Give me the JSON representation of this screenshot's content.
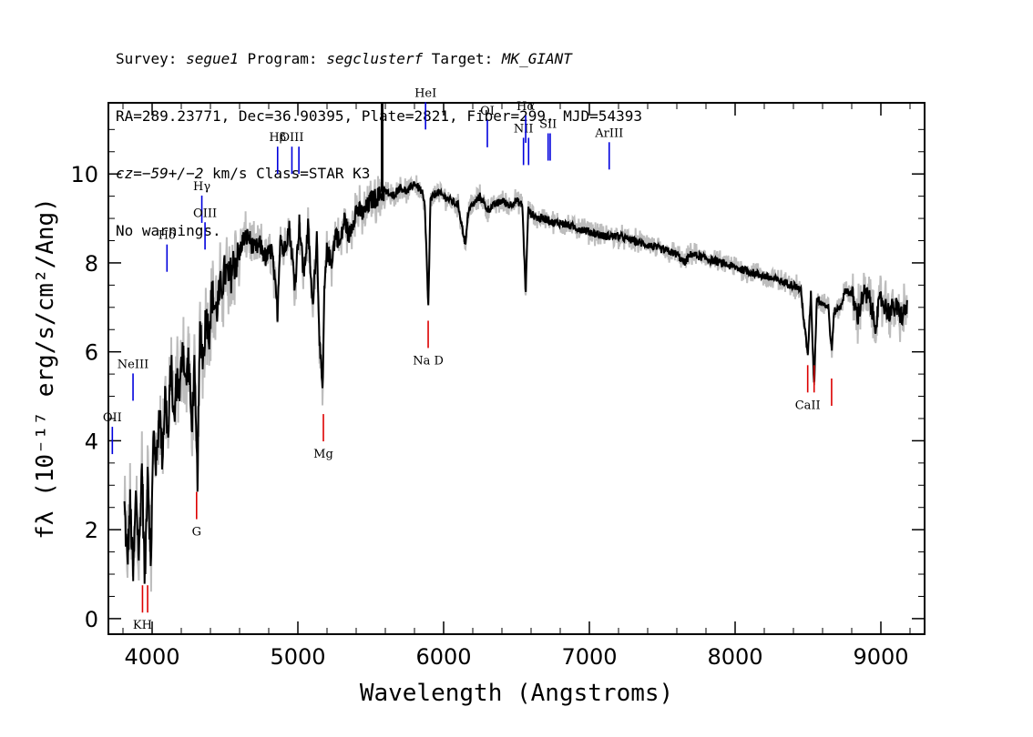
{
  "header": {
    "line1": {
      "survey_label": "Survey: ",
      "survey": "segue1",
      "program_label": " Program: ",
      "program": "segclusterf",
      "target_label": " Target: ",
      "target": "MK_GIANT"
    },
    "line2": "RA=289.23771, Dec=36.90395, Plate=2821, Fiber=299, MJD=54393",
    "line3": {
      "cz_label": "cz",
      "cz_value": "=−59+/−2",
      "rest": " km/s Class=STAR K3"
    },
    "line4": "No warnings."
  },
  "chart_data": {
    "type": "line",
    "xlabel": "Wavelength (Angstroms)",
    "ylabel": "fλ (10⁻¹⁷ erg/s/cm²/Ang)",
    "xlim": [
      3700,
      9300
    ],
    "ylim": [
      -0.35,
      11.6
    ],
    "xticks": [
      4000,
      5000,
      6000,
      7000,
      8000,
      9000
    ],
    "yticks": [
      0,
      2,
      4,
      6,
      8,
      10
    ],
    "series": [
      {
        "color": "#000000",
        "x": [
          3810,
          3830,
          3850,
          3870,
          3890,
          3910,
          3930,
          3950,
          3970,
          3990,
          4010,
          4030,
          4050,
          4070,
          4090,
          4110,
          4130,
          4150,
          4170,
          4190,
          4210,
          4230,
          4250,
          4270,
          4290,
          4310,
          4330,
          4350,
          4370,
          4390,
          4410,
          4440,
          4470,
          4500,
          4530,
          4560,
          4590,
          4620,
          4660,
          4700,
          4740,
          4780,
          4820,
          4860,
          4880,
          4900,
          4940,
          4980,
          5010,
          5040,
          5070,
          5100,
          5130,
          5150,
          5170,
          5180,
          5200,
          5230,
          5260,
          5290,
          5320,
          5350,
          5400,
          5450,
          5500,
          5550,
          5600,
          5650,
          5700,
          5750,
          5800,
          5850,
          5870,
          5890,
          5895,
          5910,
          5950,
          6000,
          6050,
          6100,
          6150,
          6170,
          6200,
          6250,
          6300,
          6350,
          6400,
          6450,
          6500,
          6540,
          6563,
          6580,
          6600,
          6650,
          6700,
          6750,
          6800,
          6900,
          7000,
          7100,
          7200,
          7300,
          7400,
          7500,
          7600,
          7650,
          7700,
          7800,
          7900,
          8000,
          8100,
          8200,
          8300,
          8400,
          8450,
          8498,
          8520,
          8542,
          8560,
          8600,
          8640,
          8662,
          8680,
          8720,
          8760,
          8800,
          8840,
          8880,
          8920,
          8960,
          9000,
          9050,
          9100,
          9150,
          9180
        ],
        "y": [
          2.5,
          1.2,
          2.6,
          0.9,
          2.9,
          1.3,
          3.5,
          0.7,
          3.6,
          1.1,
          4.2,
          3.4,
          4.8,
          3.6,
          5.1,
          4.0,
          5.8,
          4.3,
          5.5,
          5.0,
          6.3,
          5.2,
          5.9,
          4.3,
          5.5,
          3.1,
          6.6,
          5.8,
          6.9,
          6.4,
          7.3,
          6.9,
          7.4,
          7.8,
          7.6,
          8.0,
          8.1,
          8.5,
          8.6,
          8.3,
          8.4,
          8.1,
          8.3,
          6.9,
          8.7,
          8.2,
          8.8,
          7.5,
          8.9,
          7.7,
          8.8,
          7.0,
          8.6,
          6.1,
          5.0,
          7.2,
          8.3,
          8.0,
          8.7,
          8.4,
          9.0,
          8.6,
          9.2,
          9.1,
          9.4,
          9.5,
          9.6,
          9.5,
          9.7,
          9.6,
          9.8,
          9.6,
          9.3,
          7.5,
          7.0,
          9.4,
          9.6,
          9.5,
          9.4,
          9.3,
          8.4,
          9.2,
          9.3,
          9.5,
          9.2,
          9.3,
          9.4,
          9.3,
          9.4,
          9.3,
          7.3,
          9.2,
          9.1,
          9.0,
          9.0,
          8.9,
          8.9,
          8.8,
          8.7,
          8.6,
          8.6,
          8.5,
          8.4,
          8.3,
          8.2,
          8.0,
          8.2,
          8.1,
          8.0,
          7.9,
          7.8,
          7.7,
          7.6,
          7.5,
          7.4,
          5.9,
          7.3,
          5.2,
          7.2,
          7.1,
          7.0,
          6.0,
          6.9,
          7.0,
          7.4,
          7.3,
          6.8,
          7.3,
          7.2,
          6.6,
          7.2,
          6.9,
          7.0,
          6.8,
          7.0
        ]
      }
    ],
    "lines_blue": [
      {
        "label": "OII",
        "x": 3727,
        "y": 3.7
      },
      {
        "label": "NeIII",
        "x": 3869,
        "y": 4.9
      },
      {
        "label": "Hδ",
        "x": 4102,
        "y": 7.8
      },
      {
        "label": "Hγ",
        "x": 4341,
        "y": 8.9
      },
      {
        "label": "OIII",
        "x": 4363,
        "y": 8.3
      },
      {
        "label": "Hβ",
        "x": 4861,
        "y": 10.0
      },
      {
        "label": "OIII",
        "x": 4959,
        "y": 10.0
      },
      {
        "label": "",
        "x": 5007,
        "y": 10.0
      },
      {
        "label": "HeI",
        "x": 5876,
        "y": 11.0
      },
      {
        "label": "OI",
        "x": 6300,
        "y": 10.6
      },
      {
        "label": "NII",
        "x": 6548,
        "y": 10.2
      },
      {
        "label": "Hα",
        "x": 6563,
        "y": 10.7
      },
      {
        "label": "",
        "x": 6583,
        "y": 10.2
      },
      {
        "label": "SII",
        "x": 6717,
        "y": 10.3
      },
      {
        "label": "",
        "x": 6731,
        "y": 10.3
      },
      {
        "label": "ArIII",
        "x": 7136,
        "y": 10.1
      }
    ],
    "lines_red": [
      {
        "label": "KH",
        "x": 3934,
        "y": 0.75
      },
      {
        "label": "",
        "x": 3969,
        "y": 0.75
      },
      {
        "label": "G",
        "x": 4305,
        "y": 2.85
      },
      {
        "label": "Mg",
        "x": 5175,
        "y": 4.6
      },
      {
        "label": "Na D",
        "x": 5894,
        "y": 6.7
      },
      {
        "label": "CaII",
        "x": 8498,
        "y": 5.7
      },
      {
        "label": "",
        "x": 8542,
        "y": 5.7
      },
      {
        "label": "",
        "x": 8662,
        "y": 5.4
      }
    ]
  }
}
